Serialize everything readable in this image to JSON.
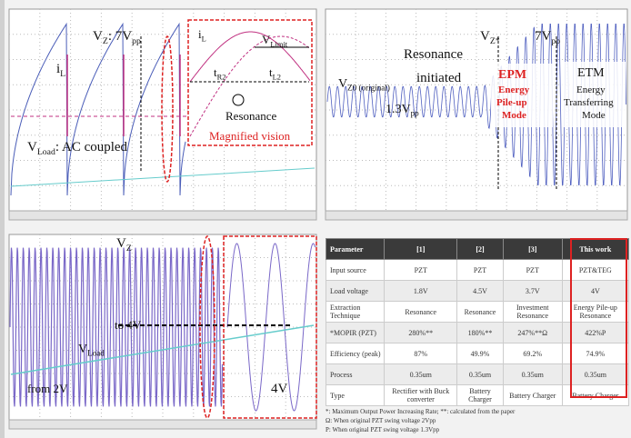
{
  "top_left": [
    [
      "i",
      "L"
    ],
    [
      "V",
      "Z",
      ": 7V",
      "pp"
    ],
    [
      "V",
      "Load",
      ": AC coupled"
    ],
    [
      "i",
      "L"
    ],
    [
      "V",
      "Limit"
    ],
    [
      "t",
      "R2"
    ],
    [
      "t",
      "L2"
    ],
    [
      "Resonance"
    ],
    [
      "Magnified vision"
    ]
  ],
  "top_right": [
    [
      "Resonance"
    ],
    [
      "initiated"
    ],
    [
      "V",
      "Z*"
    ],
    [
      "7V",
      "pp"
    ],
    [
      "V",
      "Z0 (original)"
    ],
    [
      "1.3V",
      "pp"
    ],
    [
      "EPM"
    ],
    [
      "Energy"
    ],
    [
      "Pile-up"
    ],
    [
      "Mode"
    ],
    [
      "ETM"
    ],
    [
      "Energy"
    ],
    [
      "Transferring"
    ],
    [
      "Mode"
    ]
  ],
  "bottom_left": [
    [
      "V",
      "Z"
    ],
    [
      "to 4V"
    ],
    [
      "V",
      "Load"
    ],
    [
      "from 2V"
    ],
    [
      "4V"
    ]
  ],
  "table": {
    "header": [
      "Parameter",
      "[1]",
      "[2]",
      "[3]",
      "This work"
    ],
    "rows": [
      [
        "Input source",
        "PZT",
        "PZT",
        "PZT",
        "PZT&TEG"
      ],
      [
        "Load voltage",
        "1.8V",
        "4.5V",
        "3.7V",
        "4V"
      ],
      [
        "Extraction Technique",
        "Resonance",
        "Resonance",
        "Investment Resonance",
        "Energy Pile-up Resonance"
      ],
      [
        "*MOPIR (PZT)",
        "280%**",
        "180%**",
        "247%**Ω",
        "422%P"
      ],
      [
        "Efficiency (peak)",
        "87%",
        "49.9%",
        "69.2%",
        "74.9%"
      ],
      [
        "Process",
        "0.35um",
        "0.35um",
        "0.35um",
        "0.35um"
      ],
      [
        "Type",
        "Rectifier with Buck converter",
        "Battery Charger",
        "Battery Charger",
        "Battery Charger"
      ]
    ],
    "footnotes": [
      "*: Maximum Output Power Increasing Rate; **: calculated from the paper",
      "Ω: When original PZT swing voltage 2Vpp",
      "P: When original PZT swing voltage 1.3Vpp"
    ]
  }
}
